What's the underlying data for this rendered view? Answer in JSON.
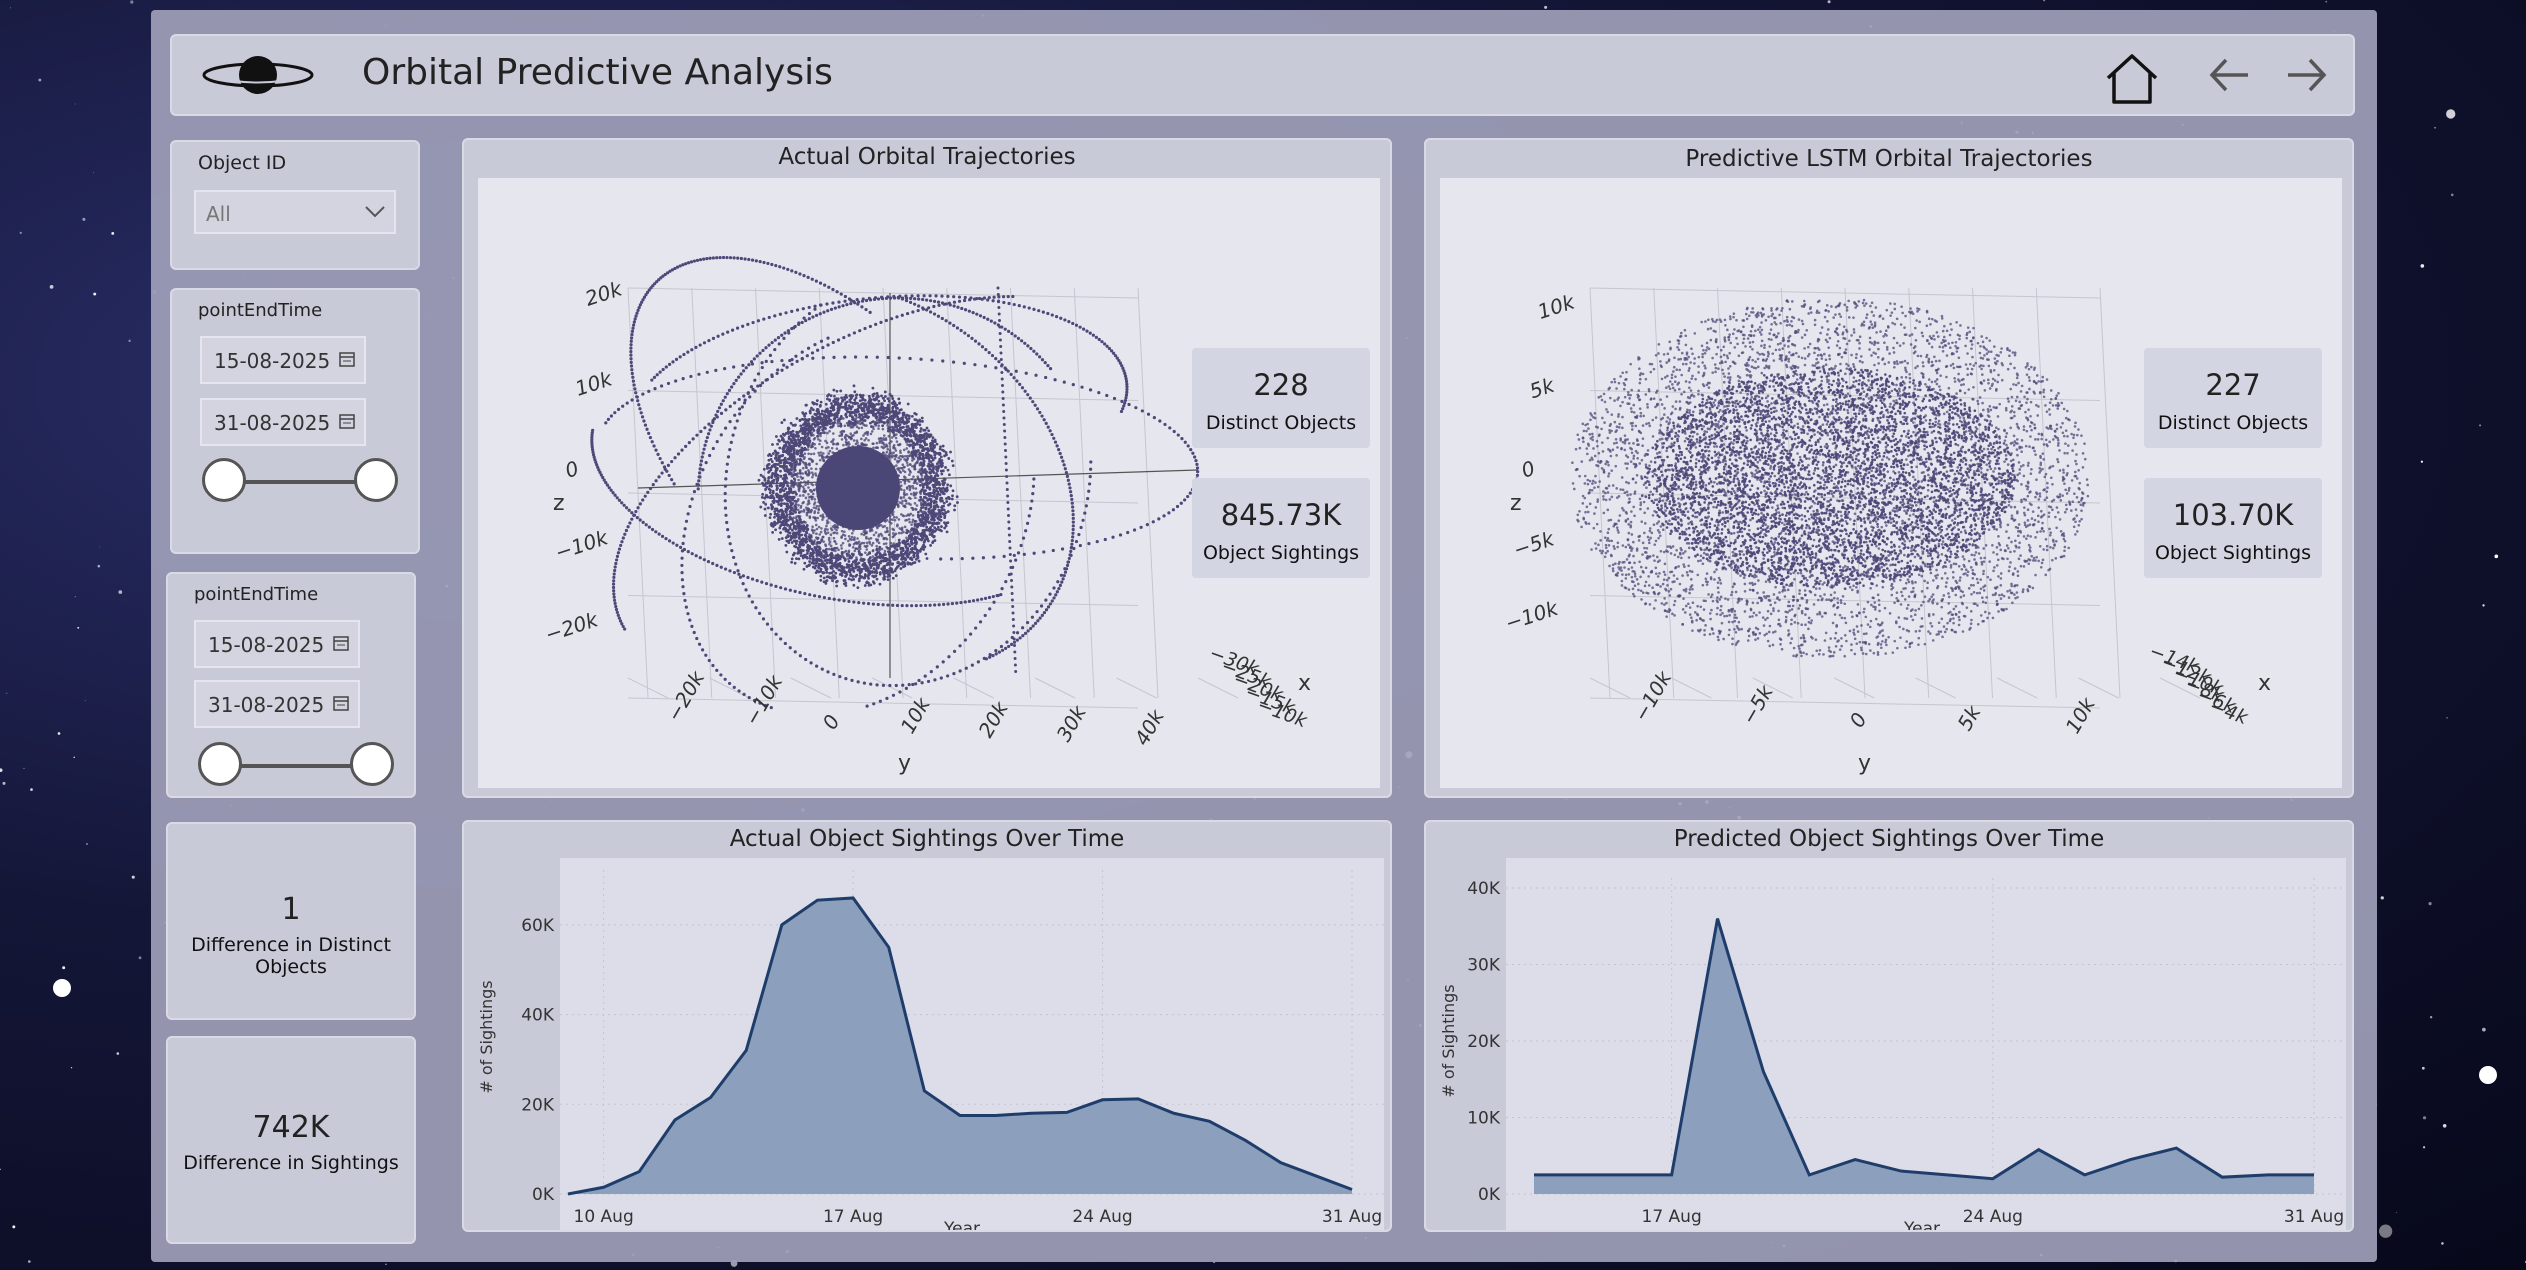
{
  "header": {
    "title": "Orbital Predictive Analysis"
  },
  "filters": {
    "object": {
      "label": "Object ID",
      "value": "All"
    },
    "range1": {
      "label": "pointEndTime",
      "start": "15-08-2025",
      "end": "31-08-2025"
    },
    "range2": {
      "label": "pointEndTime",
      "start": "15-08-2025",
      "end": "31-08-2025"
    }
  },
  "kpis": {
    "diff_objects": {
      "value": "1",
      "label_line1": "Difference in Distinct",
      "label_line2": "Objects"
    },
    "diff_sightings": {
      "value": "742K",
      "label": "Difference in Sightings"
    }
  },
  "actual3d": {
    "title": "Actual Orbital Trajectories",
    "cards": [
      {
        "value": "228",
        "label": "Distinct Objects"
      },
      {
        "value": "845.73K",
        "label": "Object Sightings"
      }
    ],
    "z_ticks": [
      "20k",
      "10k",
      "0",
      "−10k",
      "−20k"
    ],
    "y_ticks": [
      "−20k",
      "−10k",
      "0",
      "10k",
      "20k",
      "30k",
      "40k"
    ],
    "x_ticks": [
      "−30k",
      "−25k",
      "−20k",
      "−15k",
      "−10k"
    ],
    "axis_x": "x",
    "axis_y": "y",
    "axis_z": "z"
  },
  "predicted3d": {
    "title": "Predictive LSTM Orbital Trajectories",
    "cards": [
      {
        "value": "227",
        "label": "Distinct Objects"
      },
      {
        "value": "103.70K",
        "label": "Object Sightings"
      }
    ],
    "z_ticks": [
      "10k",
      "5k",
      "0",
      "−5k",
      "−10k"
    ],
    "y_ticks": [
      "−10k",
      "−5k",
      "0",
      "5k",
      "10k"
    ],
    "x_ticks": [
      "−14k",
      "−12k",
      "−10k",
      "−8k",
      "−6k",
      "−4k"
    ],
    "axis_x": "x",
    "axis_y": "y",
    "axis_z": "z"
  },
  "chart_data": [
    {
      "type": "area",
      "title": "Actual Object Sightings Over Time",
      "xlabel": "Year",
      "ylabel": "# of Sightings",
      "ylim": [
        0,
        70000
      ],
      "y_ticks": [
        "0K",
        "20K",
        "40K",
        "60K"
      ],
      "x_ticks": [
        "10 Aug",
        "17 Aug",
        "24 Aug",
        "31 Aug"
      ],
      "x_days": [
        9,
        10,
        11,
        12,
        13,
        14,
        15,
        16,
        17,
        18,
        19,
        20,
        21,
        22,
        23,
        24,
        25,
        26,
        27,
        28,
        29,
        30,
        31
      ],
      "values": [
        0,
        1500,
        5000,
        16500,
        21500,
        32000,
        60000,
        65500,
        66000,
        55000,
        23000,
        17500,
        17500,
        18000,
        18200,
        21000,
        21200,
        18000,
        16200,
        12000,
        7000,
        4000,
        1000
      ]
    },
    {
      "type": "area",
      "title": "Predicted Object Sightings Over Time",
      "xlabel": "Year",
      "ylabel": "# of Sightings",
      "ylim": [
        0,
        40000
      ],
      "y_ticks": [
        "0K",
        "10K",
        "20K",
        "30K",
        "40K"
      ],
      "x_ticks": [
        "17 Aug",
        "24 Aug",
        "31 Aug"
      ],
      "x_days": [
        14,
        15,
        16,
        17,
        18,
        19,
        20,
        21,
        22,
        23,
        24,
        25,
        26,
        27,
        28,
        29,
        30,
        31
      ],
      "values": [
        2500,
        2500,
        2500,
        2500,
        36000,
        16000,
        2500,
        4500,
        3000,
        2500,
        2000,
        5800,
        2500,
        4500,
        6000,
        2200,
        2500,
        2500
      ]
    }
  ]
}
